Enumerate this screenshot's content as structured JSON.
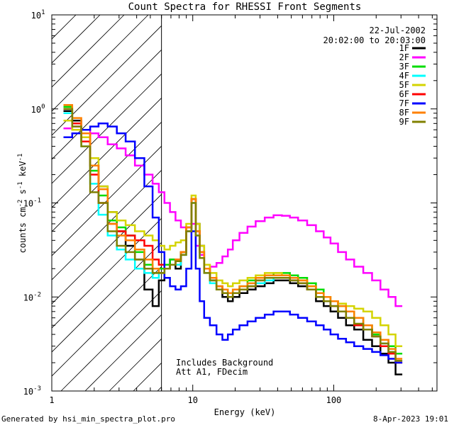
{
  "chart_data": {
    "type": "line",
    "title": "Count Spectra for RHESSI Front Segments",
    "date": "22-Jul-2002",
    "time_range": "20:02:00 to 20:03:00",
    "xlabel": "Energy (keV)",
    "ylabel_parts": [
      "counts cm",
      "-2",
      " s",
      "-1",
      " keV",
      "-1"
    ],
    "xscale": "log",
    "yscale": "log",
    "xlim": [
      1,
      540
    ],
    "ylim": [
      0.001,
      10
    ],
    "x_tick_labels": [
      {
        "value": 1,
        "label": "1"
      },
      {
        "value": 10,
        "label": "10"
      },
      {
        "value": 100,
        "label": "100"
      }
    ],
    "y_tick_labels": [
      {
        "value": 0.001,
        "base": "10",
        "exp": "-3"
      },
      {
        "value": 0.01,
        "base": "10",
        "exp": "-2"
      },
      {
        "value": 0.1,
        "base": "10",
        "exp": "-1"
      },
      {
        "value": 1,
        "base": "10",
        "exp": "0"
      },
      {
        "value": 10,
        "base": "10",
        "exp": "1"
      }
    ],
    "shaded_below_energy_kev": 6,
    "annotations": [
      "Includes Background",
      "Att A1, FDecim"
    ],
    "footer_left": "Generated by hsi_min_spectra_plot.pro",
    "footer_right": "8-Apr-2023 19:01",
    "legend_position": "top-right",
    "series": [
      {
        "name": "1F",
        "color": "#000000",
        "step": true,
        "x": [
          1.3,
          1.5,
          1.75,
          2.0,
          2.3,
          2.7,
          3.1,
          3.6,
          4.2,
          4.9,
          5.5,
          6.0,
          6.6,
          7.2,
          7.9,
          8.6,
          9.4,
          10.2,
          10.8,
          11.6,
          12.5,
          14,
          15.5,
          17,
          18.5,
          20,
          23,
          26,
          30,
          35,
          40,
          46,
          52,
          60,
          70,
          80,
          90,
          100,
          115,
          130,
          150,
          175,
          200,
          230,
          260,
          290
        ],
        "y": [
          0.95,
          0.75,
          0.55,
          0.25,
          0.15,
          0.08,
          0.05,
          0.035,
          0.025,
          0.012,
          0.008,
          0.015,
          0.02,
          0.025,
          0.02,
          0.03,
          0.05,
          0.11,
          0.06,
          0.035,
          0.02,
          0.015,
          0.012,
          0.01,
          0.009,
          0.01,
          0.011,
          0.012,
          0.013,
          0.014,
          0.015,
          0.015,
          0.014,
          0.013,
          0.012,
          0.009,
          0.008,
          0.007,
          0.006,
          0.005,
          0.0045,
          0.0035,
          0.003,
          0.0025,
          0.002,
          0.0015
        ]
      },
      {
        "name": "2F",
        "color": "#ff00ff",
        "step": true,
        "x": [
          1.3,
          1.5,
          1.75,
          2.0,
          2.3,
          2.7,
          3.1,
          3.6,
          4.2,
          4.9,
          5.5,
          6.0,
          6.6,
          7.2,
          7.9,
          8.6,
          9.4,
          10.2,
          10.8,
          11.6,
          12.5,
          14,
          15.5,
          17,
          18.5,
          20,
          23,
          26,
          30,
          35,
          40,
          46,
          52,
          60,
          70,
          80,
          90,
          100,
          115,
          130,
          150,
          175,
          200,
          230,
          260,
          290
        ],
        "y": [
          0.62,
          0.65,
          0.6,
          0.55,
          0.5,
          0.42,
          0.38,
          0.32,
          0.25,
          0.2,
          0.16,
          0.13,
          0.1,
          0.08,
          0.065,
          0.055,
          0.05,
          0.06,
          0.035,
          0.028,
          0.022,
          0.021,
          0.023,
          0.027,
          0.032,
          0.04,
          0.048,
          0.056,
          0.064,
          0.07,
          0.074,
          0.073,
          0.07,
          0.065,
          0.058,
          0.05,
          0.043,
          0.037,
          0.03,
          0.025,
          0.021,
          0.018,
          0.015,
          0.012,
          0.01,
          0.008
        ]
      },
      {
        "name": "3F",
        "color": "#00dd00",
        "step": true,
        "x": [
          1.3,
          1.5,
          1.75,
          2.0,
          2.3,
          2.7,
          3.1,
          3.6,
          4.2,
          4.9,
          5.5,
          6.0,
          6.6,
          7.2,
          7.9,
          8.6,
          9.4,
          10.2,
          10.8,
          11.6,
          12.5,
          14,
          15.5,
          17,
          18.5,
          20,
          23,
          26,
          30,
          35,
          40,
          46,
          52,
          60,
          70,
          80,
          90,
          100,
          115,
          130,
          150,
          175,
          200,
          230,
          260,
          290
        ],
        "y": [
          1.05,
          0.7,
          0.45,
          0.22,
          0.12,
          0.065,
          0.055,
          0.045,
          0.03,
          0.022,
          0.018,
          0.02,
          0.022,
          0.025,
          0.025,
          0.03,
          0.055,
          0.11,
          0.05,
          0.03,
          0.02,
          0.016,
          0.013,
          0.012,
          0.011,
          0.012,
          0.013,
          0.015,
          0.016,
          0.017,
          0.018,
          0.018,
          0.017,
          0.016,
          0.014,
          0.012,
          0.01,
          0.009,
          0.008,
          0.007,
          0.006,
          0.005,
          0.004,
          0.0035,
          0.003,
          0.0025
        ]
      },
      {
        "name": "4F",
        "color": "#00ffff",
        "step": true,
        "x": [
          1.3,
          1.5,
          1.75,
          2.0,
          2.3,
          2.7,
          3.1,
          3.6,
          4.2,
          4.9,
          5.5,
          6.0,
          6.6,
          7.2,
          7.9,
          8.6,
          9.4,
          10.2,
          10.8,
          11.6,
          12.5,
          14,
          15.5,
          17,
          18.5,
          20,
          23,
          26,
          30,
          35,
          40,
          46,
          52,
          60,
          70,
          80,
          90,
          100,
          115,
          130,
          150,
          175,
          200,
          230,
          260,
          290
        ],
        "y": [
          0.9,
          0.6,
          0.4,
          0.16,
          0.075,
          0.045,
          0.032,
          0.025,
          0.02,
          0.018,
          0.016,
          0.018,
          0.02,
          0.022,
          0.022,
          0.028,
          0.05,
          0.1,
          0.045,
          0.026,
          0.018,
          0.014,
          0.012,
          0.011,
          0.01,
          0.011,
          0.012,
          0.013,
          0.014,
          0.015,
          0.016,
          0.016,
          0.015,
          0.014,
          0.012,
          0.01,
          0.009,
          0.008,
          0.007,
          0.006,
          0.005,
          0.0045,
          0.0038,
          0.0032,
          0.0026,
          0.0021
        ]
      },
      {
        "name": "5F",
        "color": "#d4d400",
        "step": true,
        "x": [
          1.3,
          1.5,
          1.75,
          2.0,
          2.3,
          2.7,
          3.1,
          3.6,
          4.2,
          4.9,
          5.5,
          6.0,
          6.6,
          7.2,
          7.9,
          8.6,
          9.4,
          10.2,
          10.8,
          11.6,
          12.5,
          14,
          15.5,
          17,
          18.5,
          20,
          23,
          26,
          30,
          35,
          40,
          46,
          52,
          60,
          70,
          80,
          90,
          100,
          115,
          130,
          150,
          175,
          200,
          230,
          260,
          290
        ],
        "y": [
          0.75,
          0.6,
          0.5,
          0.3,
          0.15,
          0.08,
          0.065,
          0.058,
          0.05,
          0.045,
          0.04,
          0.035,
          0.032,
          0.035,
          0.038,
          0.04,
          0.06,
          0.12,
          0.06,
          0.035,
          0.022,
          0.018,
          0.015,
          0.014,
          0.013,
          0.014,
          0.015,
          0.016,
          0.017,
          0.018,
          0.018,
          0.017,
          0.016,
          0.015,
          0.013,
          0.011,
          0.01,
          0.009,
          0.0085,
          0.008,
          0.0075,
          0.007,
          0.006,
          0.005,
          0.004,
          0.003
        ]
      },
      {
        "name": "6F",
        "color": "#ff0000",
        "step": true,
        "x": [
          1.3,
          1.5,
          1.75,
          2.0,
          2.3,
          2.7,
          3.1,
          3.6,
          4.2,
          4.9,
          5.5,
          6.0,
          6.6,
          7.2,
          7.9,
          8.6,
          9.4,
          10.2,
          10.8,
          11.6,
          12.5,
          14,
          15.5,
          17,
          18.5,
          20,
          23,
          26,
          30,
          35,
          40,
          46,
          52,
          60,
          70,
          80,
          90,
          100,
          115,
          130,
          150,
          175,
          200,
          230,
          260,
          290
        ],
        "y": [
          1.0,
          0.7,
          0.45,
          0.2,
          0.1,
          0.06,
          0.05,
          0.045,
          0.04,
          0.035,
          0.025,
          0.022,
          0.02,
          0.022,
          0.025,
          0.03,
          0.055,
          0.11,
          0.05,
          0.03,
          0.02,
          0.016,
          0.013,
          0.011,
          0.01,
          0.011,
          0.012,
          0.013,
          0.015,
          0.016,
          0.016,
          0.016,
          0.015,
          0.014,
          0.012,
          0.01,
          0.009,
          0.008,
          0.007,
          0.006,
          0.005,
          0.0045,
          0.0038,
          0.003,
          0.0025,
          0.002
        ]
      },
      {
        "name": "7F",
        "color": "#0000ff",
        "step": true,
        "x": [
          1.3,
          1.5,
          1.75,
          2.0,
          2.3,
          2.7,
          3.1,
          3.6,
          4.2,
          4.9,
          5.5,
          6.0,
          6.6,
          7.2,
          7.9,
          8.6,
          9.4,
          10.2,
          10.8,
          11.6,
          12.5,
          14,
          15.5,
          17,
          18.5,
          20,
          23,
          26,
          30,
          35,
          40,
          46,
          52,
          60,
          70,
          80,
          90,
          100,
          115,
          130,
          150,
          175,
          200,
          230,
          260,
          290
        ],
        "y": [
          0.5,
          0.55,
          0.6,
          0.65,
          0.7,
          0.65,
          0.55,
          0.45,
          0.3,
          0.15,
          0.07,
          0.03,
          0.016,
          0.013,
          0.012,
          0.013,
          0.02,
          0.05,
          0.02,
          0.009,
          0.006,
          0.005,
          0.004,
          0.0035,
          0.004,
          0.0045,
          0.005,
          0.0055,
          0.006,
          0.0065,
          0.007,
          0.007,
          0.0065,
          0.006,
          0.0055,
          0.005,
          0.0045,
          0.004,
          0.0036,
          0.0033,
          0.003,
          0.0028,
          0.0026,
          0.0024,
          0.0022,
          0.002
        ]
      },
      {
        "name": "8F",
        "color": "#ff8000",
        "step": true,
        "x": [
          1.3,
          1.5,
          1.75,
          2.0,
          2.3,
          2.7,
          3.1,
          3.6,
          4.2,
          4.9,
          5.5,
          6.0,
          6.6,
          7.2,
          7.9,
          8.6,
          9.4,
          10.2,
          10.8,
          11.6,
          12.5,
          14,
          15.5,
          17,
          18.5,
          20,
          23,
          26,
          30,
          35,
          40,
          46,
          52,
          60,
          70,
          80,
          90,
          100,
          115,
          130,
          150,
          175,
          200,
          230,
          260,
          290
        ],
        "y": [
          1.1,
          0.8,
          0.55,
          0.25,
          0.14,
          0.06,
          0.045,
          0.04,
          0.032,
          0.025,
          0.02,
          0.018,
          0.02,
          0.022,
          0.025,
          0.03,
          0.055,
          0.11,
          0.05,
          0.03,
          0.02,
          0.016,
          0.013,
          0.012,
          0.011,
          0.012,
          0.013,
          0.014,
          0.016,
          0.017,
          0.017,
          0.017,
          0.016,
          0.015,
          0.013,
          0.011,
          0.01,
          0.009,
          0.008,
          0.007,
          0.006,
          0.005,
          0.0042,
          0.0035,
          0.0028,
          0.0022
        ]
      },
      {
        "name": "9F",
        "color": "#808000",
        "step": true,
        "x": [
          1.3,
          1.5,
          1.75,
          2.0,
          2.3,
          2.7,
          3.1,
          3.6,
          4.2,
          4.9,
          5.5,
          6.0,
          6.6,
          7.2,
          7.9,
          8.6,
          9.4,
          10.2,
          10.8,
          11.6,
          12.5,
          14,
          15.5,
          17,
          18.5,
          20,
          23,
          26,
          30,
          35,
          40,
          46,
          52,
          60,
          70,
          80,
          90,
          100,
          115,
          130,
          150,
          175,
          200,
          230,
          260,
          290
        ],
        "y": [
          1.0,
          0.65,
          0.4,
          0.13,
          0.1,
          0.05,
          0.035,
          0.03,
          0.025,
          0.02,
          0.018,
          0.018,
          0.02,
          0.022,
          0.024,
          0.028,
          0.05,
          0.1,
          0.045,
          0.026,
          0.018,
          0.015,
          0.012,
          0.011,
          0.01,
          0.011,
          0.012,
          0.013,
          0.015,
          0.016,
          0.016,
          0.016,
          0.015,
          0.014,
          0.012,
          0.01,
          0.009,
          0.008,
          0.007,
          0.006,
          0.0052,
          0.0045,
          0.0038,
          0.0032,
          0.0026,
          0.0021
        ]
      }
    ]
  }
}
